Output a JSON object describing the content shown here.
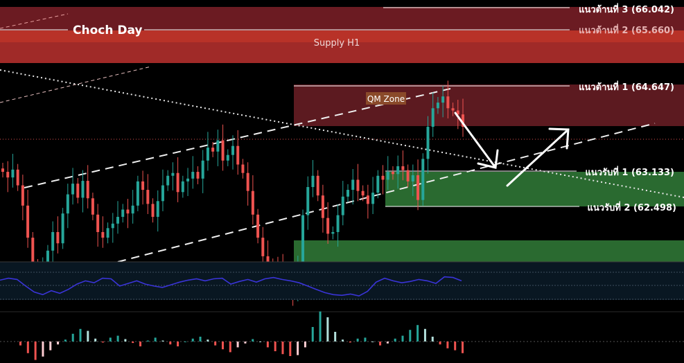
{
  "chart_data": {
    "type": "candlestick",
    "title": "Choch Day",
    "zones": {
      "supply": "Supply H1",
      "qm": "QM Zone"
    },
    "levels": [
      {
        "label": "แนวต้านที่ 3 (66.042)",
        "value": 66.042,
        "kind": "resistance"
      },
      {
        "label": "แนวต้านที่ 2 (65.660)",
        "value": 65.66,
        "kind": "resistance"
      },
      {
        "label": "แนวต้านที่ 1 (64.647)",
        "value": 64.647,
        "kind": "resistance"
      },
      {
        "label": "แนวรับที่ 1 (63.133)",
        "value": 63.133,
        "kind": "support"
      },
      {
        "label": "แนวรับที่ 2 (62.498)",
        "value": 62.498,
        "kind": "support"
      }
    ],
    "price_range": [
      61.0,
      66.25
    ],
    "closes": [
      63.12,
      63.02,
      63.16,
      62.88,
      62.52,
      61.95,
      61.38,
      61.12,
      61.32,
      61.72,
      62.05,
      61.85,
      62.38,
      62.72,
      62.91,
      62.66,
      62.96,
      62.65,
      62.36,
      62.05,
      61.95,
      62.12,
      62.2,
      62.32,
      62.45,
      62.38,
      62.52,
      62.95,
      62.8,
      62.55,
      62.32,
      62.6,
      62.88,
      63.05,
      63.1,
      62.76,
      62.95,
      63.0,
      63.12,
      63.0,
      63.32,
      63.55,
      63.48,
      63.68,
      63.32,
      63.42,
      63.58,
      63.25,
      63.1,
      62.78,
      62.36,
      61.95,
      61.62,
      61.48,
      61.42,
      61.38,
      61.25,
      61.12,
      61.0,
      61.35,
      62.35,
      62.85,
      63.05,
      62.7,
      62.3,
      62.02,
      62.05,
      62.35,
      62.68,
      62.8,
      62.98,
      62.78,
      62.7,
      62.55,
      62.75,
      63.05,
      62.98,
      63.12,
      63.08,
      63.22,
      63.15,
      62.95,
      63.06,
      62.62,
      63.35,
      63.92,
      64.25,
      64.35,
      64.46,
      64.25,
      64.21,
      64.14,
      63.92
    ],
    "rsi": [
      58,
      61,
      59,
      49,
      40,
      36,
      42,
      38,
      44,
      52,
      57,
      54,
      61,
      60,
      49,
      53,
      57,
      52,
      49,
      47,
      51,
      55,
      58,
      60,
      57,
      60,
      61,
      52,
      56,
      59,
      55,
      60,
      62,
      59,
      57,
      54,
      49,
      44,
      39,
      36,
      35,
      37,
      34,
      41,
      55,
      61,
      57,
      54,
      56,
      59,
      57,
      53,
      63,
      62,
      57
    ],
    "macd": [
      -0.08,
      -0.24,
      -0.38,
      -0.31,
      -0.18,
      -0.06,
      0.04,
      0.16,
      0.26,
      0.22,
      0.06,
      -0.02,
      0.08,
      0.12,
      0.05,
      -0.03,
      -0.1,
      0.02,
      0.08,
      0.02,
      -0.06,
      -0.1,
      0.0,
      0.06,
      0.1,
      0.04,
      -0.08,
      -0.16,
      -0.22,
      -0.12,
      -0.04,
      0.05,
      0.0,
      -0.12,
      -0.2,
      -0.26,
      -0.3,
      -0.28,
      -0.12,
      0.3,
      0.62,
      0.5,
      0.2,
      0.04,
      -0.02,
      0.06,
      0.08,
      0.0,
      -0.08,
      -0.04,
      0.06,
      0.12,
      0.24,
      0.34,
      0.26,
      0.1,
      -0.06,
      -0.14,
      -0.18,
      -0.24
    ]
  }
}
